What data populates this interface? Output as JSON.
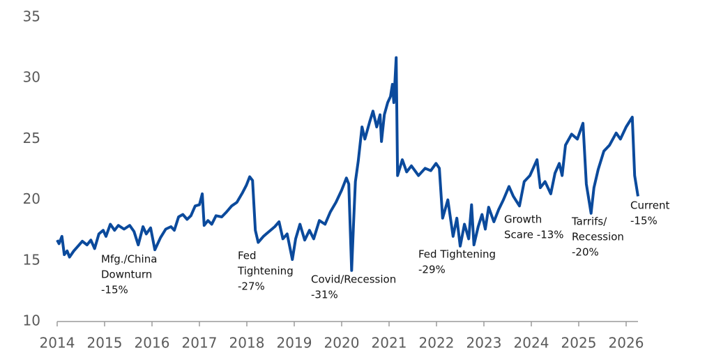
{
  "chart_data": {
    "type": "line",
    "x": [
      2014.0,
      2014.04,
      2014.1,
      2014.15,
      2014.21,
      2014.26,
      2014.35,
      2014.44,
      2014.53,
      2014.63,
      2014.71,
      2014.79,
      2014.88,
      2014.97,
      2015.03,
      2015.12,
      2015.21,
      2015.29,
      2015.41,
      2015.53,
      2015.62,
      2015.71,
      2015.81,
      2015.88,
      2015.97,
      2016.06,
      2016.18,
      2016.29,
      2016.4,
      2016.47,
      2016.56,
      2016.65,
      2016.74,
      2016.82,
      2016.91,
      2017.0,
      2017.06,
      2017.1,
      2017.18,
      2017.26,
      2017.35,
      2017.47,
      2017.57,
      2017.68,
      2017.79,
      2017.91,
      2017.99,
      2018.06,
      2018.12,
      2018.18,
      2018.24,
      2018.35,
      2018.47,
      2018.59,
      2018.68,
      2018.76,
      2018.85,
      2018.96,
      2019.03,
      2019.12,
      2019.22,
      2019.32,
      2019.41,
      2019.53,
      2019.65,
      2019.76,
      2019.88,
      2020.0,
      2020.1,
      2020.15,
      2020.21,
      2020.25,
      2020.29,
      2020.35,
      2020.43,
      2020.49,
      2020.59,
      2020.66,
      2020.74,
      2020.81,
      2020.84,
      2020.9,
      2020.97,
      2021.03,
      2021.07,
      2021.1,
      2021.15,
      2021.18,
      2021.28,
      2021.37,
      2021.47,
      2021.62,
      2021.76,
      2021.88,
      2021.99,
      2022.06,
      2022.13,
      2022.24,
      2022.35,
      2022.43,
      2022.5,
      2022.59,
      2022.68,
      2022.74,
      2022.79,
      2022.88,
      2022.96,
      2023.03,
      2023.1,
      2023.21,
      2023.31,
      2023.41,
      2023.53,
      2023.62,
      2023.75,
      2023.85,
      2023.97,
      2024.12,
      2024.19,
      2024.29,
      2024.41,
      2024.5,
      2024.59,
      2024.65,
      2024.72,
      2024.85,
      2024.97,
      2025.09,
      2025.16,
      2025.26,
      2025.32,
      2025.41,
      2025.53,
      2025.65,
      2025.79,
      2025.88,
      2026.0,
      2026.13,
      2026.18,
      2026.22,
      2026.25
    ],
    "series": [
      {
        "color": "#0b4a9c",
        "values": [
          16.7,
          16.4,
          17.0,
          15.5,
          15.8,
          15.3,
          15.8,
          16.2,
          16.6,
          16.3,
          16.7,
          16.0,
          17.2,
          17.5,
          17.0,
          18.0,
          17.5,
          17.9,
          17.6,
          17.9,
          17.4,
          16.3,
          17.8,
          17.2,
          17.7,
          15.9,
          16.9,
          17.6,
          17.8,
          17.5,
          18.6,
          18.8,
          18.4,
          18.7,
          19.5,
          19.6,
          20.5,
          17.9,
          18.3,
          18.0,
          18.7,
          18.6,
          19.0,
          19.5,
          19.8,
          20.6,
          21.2,
          21.9,
          21.6,
          17.5,
          16.5,
          17.0,
          17.4,
          17.8,
          18.2,
          16.8,
          17.2,
          15.1,
          16.8,
          18.0,
          16.7,
          17.5,
          16.8,
          18.3,
          18.0,
          19.0,
          19.8,
          20.8,
          21.8,
          21.3,
          14.2,
          18.0,
          21.5,
          23.2,
          26.0,
          25.0,
          26.4,
          27.3,
          26.0,
          27.0,
          24.8,
          27.0,
          28.0,
          28.5,
          29.5,
          28.0,
          31.7,
          22.0,
          23.3,
          22.3,
          22.8,
          22.0,
          22.6,
          22.4,
          23.0,
          22.6,
          18.5,
          20.0,
          17.0,
          18.5,
          16.2,
          18.0,
          16.8,
          19.6,
          16.3,
          17.8,
          18.8,
          17.6,
          19.4,
          18.2,
          19.2,
          20.0,
          21.1,
          20.3,
          19.5,
          21.5,
          22.0,
          23.3,
          21.0,
          21.5,
          20.5,
          22.2,
          23.0,
          22.0,
          24.5,
          25.4,
          25.0,
          26.3,
          21.3,
          18.9,
          21.0,
          22.5,
          24.0,
          24.5,
          25.5,
          25.0,
          26.0,
          26.8,
          22.0,
          21.0,
          20.3
        ]
      }
    ],
    "xlim": [
      2014,
      2026.25
    ],
    "xticks": [
      2014,
      2015,
      2016,
      2017,
      2018,
      2019,
      2020,
      2021,
      2022,
      2023,
      2024,
      2025,
      2026
    ],
    "ylim": [
      10,
      35
    ],
    "yticks": [
      10,
      15,
      20,
      25,
      30,
      35
    ],
    "grid": false,
    "annotations": [
      [
        "Mfg./China",
        "Downturn",
        "-15%"
      ],
      [
        "Fed",
        "Tightening",
        "-27%"
      ],
      [
        "Covid/Recession",
        "-31%"
      ],
      [
        "Fed Tightening",
        "-29%"
      ],
      [
        "Growth",
        "Scare -13%"
      ],
      [
        "Tarrifs/",
        "Recession",
        "-20%"
      ],
      [
        "Current",
        "-15%"
      ]
    ]
  }
}
